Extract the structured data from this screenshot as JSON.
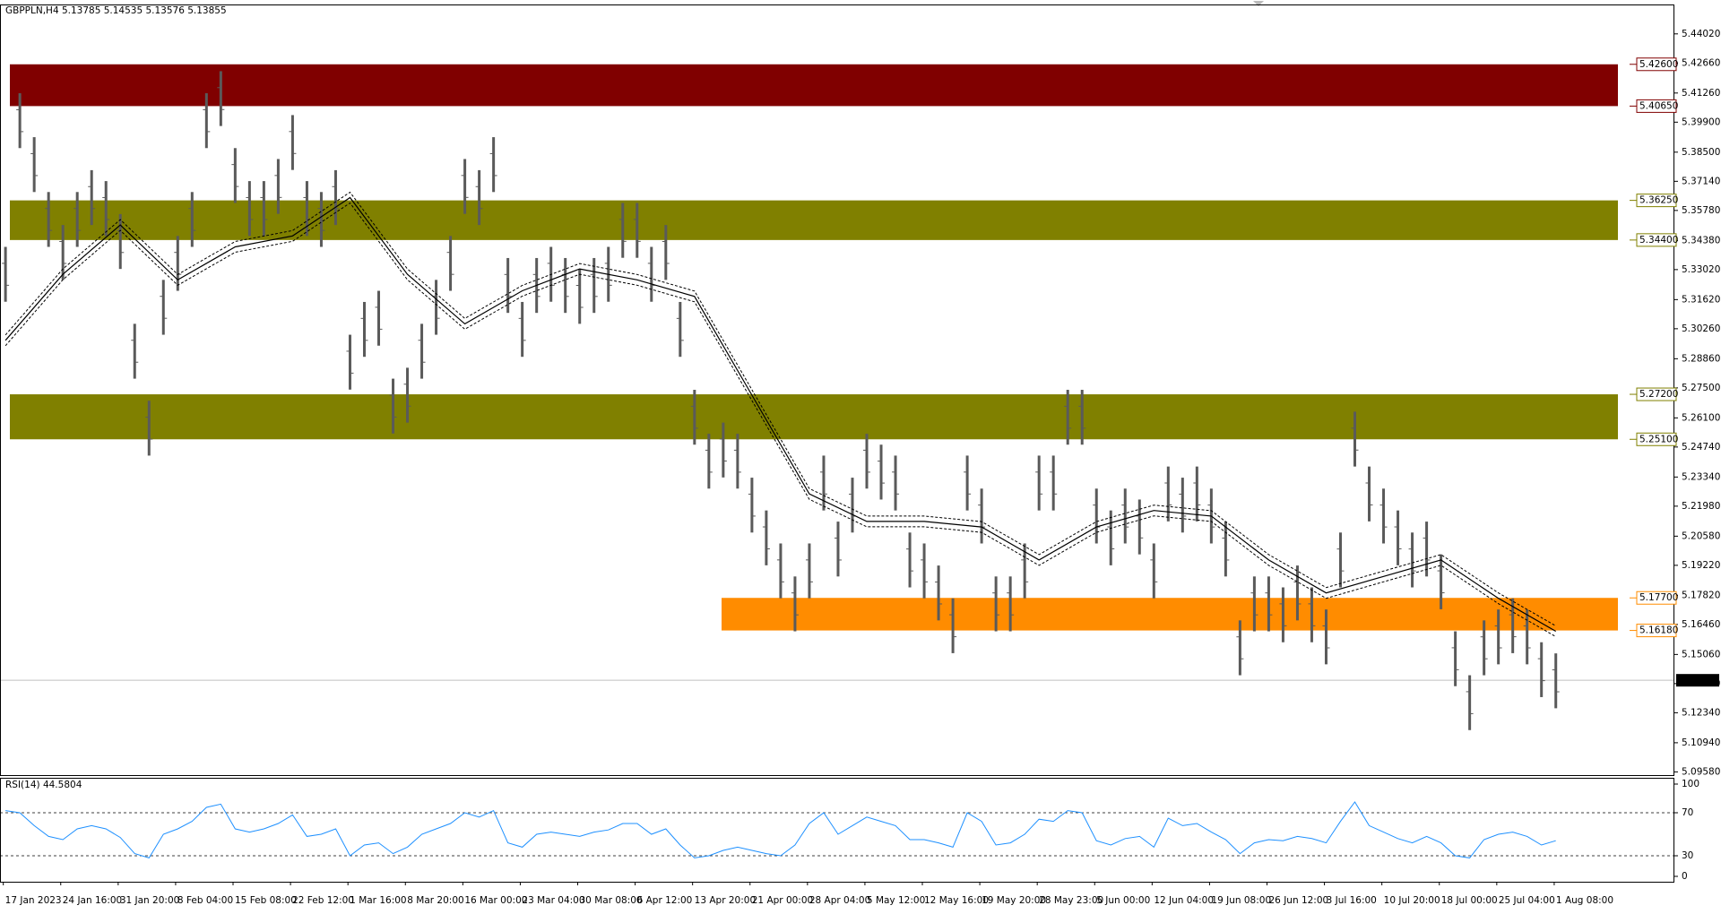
{
  "chart_data": {
    "type": "ohlc",
    "header": "GBPPLN,H4  5.13785 5.14535 5.13576 5.13855",
    "rsi_label": "RSI(14) 44.5804",
    "color": "#5a5a5a",
    "ma_color": "#000000",
    "categories": [
      "17 Jan 2023",
      null,
      null,
      null,
      "24 Jan 16:00",
      null,
      null,
      null,
      "31 Jan 20:00",
      null,
      null,
      null,
      "8 Feb 04:00",
      null,
      null,
      null,
      "15 Feb 08:00",
      null,
      null,
      null,
      "22 Feb 12:00",
      null,
      null,
      null,
      "1 Mar 16:00",
      null,
      null,
      null,
      "8 Mar 20:00",
      null,
      null,
      null,
      "16 Mar 00:00",
      null,
      null,
      null,
      "23 Mar 04:00",
      null,
      null,
      null,
      "30 Mar 08:00",
      null,
      null,
      null,
      "6 Apr 12:00",
      null,
      null,
      null,
      "13 Apr 20:00",
      null,
      null,
      null,
      "21 Apr 00:00",
      null,
      null,
      null,
      "28 Apr 04:00",
      null,
      null,
      null,
      "5 May 12:00",
      null,
      null,
      null,
      "12 May 16:00",
      null,
      null,
      null,
      "19 May 20:00",
      null,
      null,
      null,
      "28 May 23:00",
      null,
      null,
      null,
      "5 Jun 00:00",
      null,
      null,
      null,
      "12 Jun 04:00",
      null,
      null,
      null,
      "19 Jun 08:00",
      null,
      null,
      null,
      "26 Jun 12:00",
      null,
      null,
      null,
      "3 Jul 16:00",
      null,
      null,
      null,
      "10 Jul 20:00",
      null,
      null,
      null,
      "18 Jul 00:00",
      null,
      null,
      null,
      "25 Jul 04:00",
      null,
      null,
      null,
      "1 Aug 08:00"
    ],
    "high": [
      5.3408,
      5.4125,
      5.392,
      5.3664,
      5.351,
      5.3664,
      5.3766,
      5.3715,
      5.3561,
      5.3049,
      5.269,
      5.3254,
      5.3459,
      5.3664,
      5.4125,
      5.4228,
      5.3869,
      5.3715,
      5.3715,
      5.3818,
      5.4023,
      5.3715,
      5.3664,
      5.3766,
      5.2998,
      5.3151,
      5.3203,
      5.2793,
      5.2844,
      5.3049,
      5.3254,
      5.3459,
      5.3818,
      5.3766,
      5.392,
      5.3356,
      5.3151,
      5.3356,
      5.3408,
      5.3356,
      5.3305,
      5.3356,
      5.3408,
      5.3613,
      5.3613,
      5.3408,
      5.351,
      5.3151,
      5.2741,
      5.2536,
      5.2588,
      5.2536,
      5.2331,
      5.2178,
      5.2024,
      5.187,
      5.2024,
      5.2434,
      5.2126,
      5.2331,
      5.2536,
      5.2485,
      5.2434,
      5.2075,
      5.2024,
      5.1921,
      5.1768,
      5.2434,
      5.228,
      5.187,
      5.187,
      5.2024,
      5.2434,
      5.2434,
      5.2741,
      5.2741,
      5.228,
      5.2178,
      5.228,
      5.2229,
      5.2024,
      5.2383,
      5.2331,
      5.2383,
      5.228,
      5.2126,
      5.1665,
      5.187,
      5.187,
      5.1819,
      5.1921,
      5.1819,
      5.1716,
      5.2075,
      5.2639,
      5.2383,
      5.228,
      5.2178,
      5.2075,
      5.2126,
      5.1973,
      5.1614,
      5.1409,
      5.1665,
      5.1716,
      5.1768,
      5.1716,
      5.1563,
      5.1511
    ],
    "low": [
      5.3152,
      5.3869,
      5.3664,
      5.3408,
      5.3254,
      5.3408,
      5.351,
      5.3459,
      5.3305,
      5.2793,
      5.2434,
      5.2998,
      5.3203,
      5.3408,
      5.3869,
      5.3972,
      5.3613,
      5.3459,
      5.3459,
      5.3562,
      5.3767,
      5.3459,
      5.3408,
      5.351,
      5.2742,
      5.2895,
      5.2947,
      5.2537,
      5.2588,
      5.2793,
      5.2998,
      5.3203,
      5.3562,
      5.351,
      5.3664,
      5.31,
      5.2895,
      5.31,
      5.3152,
      5.31,
      5.3049,
      5.31,
      5.3152,
      5.3357,
      5.3357,
      5.3152,
      5.3254,
      5.2895,
      5.2485,
      5.228,
      5.2332,
      5.228,
      5.2075,
      5.1922,
      5.1768,
      5.1614,
      5.1768,
      5.2178,
      5.187,
      5.2075,
      5.228,
      5.2229,
      5.2178,
      5.1819,
      5.1768,
      5.1665,
      5.1512,
      5.2178,
      5.2024,
      5.1614,
      5.1614,
      5.1768,
      5.2178,
      5.2178,
      5.2485,
      5.2485,
      5.2024,
      5.1922,
      5.2024,
      5.1973,
      5.1768,
      5.2127,
      5.2075,
      5.2127,
      5.2024,
      5.187,
      5.1409,
      5.1614,
      5.1614,
      5.1563,
      5.1665,
      5.1563,
      5.146,
      5.1819,
      5.2383,
      5.2127,
      5.2024,
      5.1922,
      5.1819,
      5.187,
      5.1717,
      5.1358,
      5.1153,
      5.1409,
      5.146,
      5.1512,
      5.146,
      5.1307,
      5.1255
    ],
    "moving_average": [
      5.2972,
      5.328,
      5.351,
      5.3254,
      5.3408,
      5.3459,
      5.3638,
      5.328,
      5.3049,
      5.3203,
      5.3305,
      5.3254,
      5.3177,
      5.2716,
      5.2255,
      5.2127,
      5.2127,
      5.2101,
      5.1947,
      5.2101,
      5.2178,
      5.2152,
      5.1947,
      5.1793,
      5.187,
      5.1947,
      5.1768,
      5.1614
    ],
    "ylim": [
      5.0943,
      5.4535
    ],
    "yticks": [
      {
        "value": 5.0958,
        "label": "5.09580"
      },
      {
        "value": 5.1094,
        "label": "5.10940"
      },
      {
        "value": 5.1234,
        "label": "5.12340"
      },
      {
        "value": 5.137,
        "label": "5.13700"
      },
      {
        "value": 5.1506,
        "label": "5.15060"
      },
      {
        "value": 5.1646,
        "label": "5.16460"
      },
      {
        "value": 5.1782,
        "label": "5.17820"
      },
      {
        "value": 5.1922,
        "label": "5.19220"
      },
      {
        "value": 5.2058,
        "label": "5.20580"
      },
      {
        "value": 5.2198,
        "label": "5.21980"
      },
      {
        "value": 5.2334,
        "label": "5.23340"
      },
      {
        "value": 5.2474,
        "label": "5.24740"
      },
      {
        "value": 5.261,
        "label": "5.26100"
      },
      {
        "value": 5.275,
        "label": "5.27500"
      },
      {
        "value": 5.2886,
        "label": "5.28860"
      },
      {
        "value": 5.3026,
        "label": "5.30260"
      },
      {
        "value": 5.3162,
        "label": "5.31620"
      },
      {
        "value": 5.3302,
        "label": "5.33020"
      },
      {
        "value": 5.3438,
        "label": "5.34380"
      },
      {
        "value": 5.3578,
        "label": "5.35780"
      },
      {
        "value": 5.3714,
        "label": "5.37140"
      },
      {
        "value": 5.385,
        "label": "5.38500"
      },
      {
        "value": 5.399,
        "label": "5.39900"
      },
      {
        "value": 5.4126,
        "label": "5.41260"
      },
      {
        "value": 5.4266,
        "label": "5.42660"
      },
      {
        "value": 5.4402,
        "label": "5.44020"
      }
    ],
    "zones": [
      {
        "top": {
          "value": 5.426,
          "label": "5.42600"
        },
        "bottom": {
          "value": 5.4065,
          "label": "5.40650"
        },
        "color": "#800000"
      },
      {
        "top": {
          "value": 5.3625,
          "label": "5.36250"
        },
        "bottom": {
          "value": 5.344,
          "label": "5.34400"
        },
        "color": "#808000"
      },
      {
        "top": {
          "value": 5.272,
          "label": "5.27200"
        },
        "bottom": {
          "value": 5.251,
          "label": "5.25100"
        },
        "color": "#808000"
      },
      {
        "top": {
          "value": 5.177,
          "label": "5.17700"
        },
        "bottom": {
          "value": 5.1618,
          "label": "5.16180"
        },
        "color": "#ff8c00"
      }
    ],
    "current_price": 5.13855,
    "rsi": {
      "values": [
        72,
        70,
        58,
        48,
        45,
        55,
        58,
        55,
        47,
        32,
        28,
        50,
        55,
        62,
        75,
        78,
        55,
        52,
        55,
        60,
        68,
        48,
        50,
        55,
        30,
        40,
        42,
        32,
        38,
        50,
        55,
        60,
        70,
        66,
        72,
        42,
        38,
        50,
        52,
        50,
        48,
        52,
        54,
        60,
        60,
        50,
        55,
        40,
        28,
        30,
        35,
        38,
        35,
        32,
        30,
        40,
        60,
        70,
        50,
        58,
        66,
        62,
        58,
        45,
        45,
        42,
        38,
        70,
        62,
        40,
        42,
        50,
        64,
        62,
        72,
        70,
        44,
        40,
        46,
        48,
        38,
        65,
        58,
        60,
        52,
        45,
        32,
        42,
        45,
        44,
        48,
        46,
        42,
        62,
        80,
        58,
        52,
        46,
        42,
        48,
        42,
        30,
        28,
        45,
        50,
        52,
        48,
        40,
        44
      ],
      "color": "#1e90ff",
      "ylim": [
        0,
        100
      ],
      "yticks": [
        100,
        70,
        30,
        0
      ]
    }
  }
}
